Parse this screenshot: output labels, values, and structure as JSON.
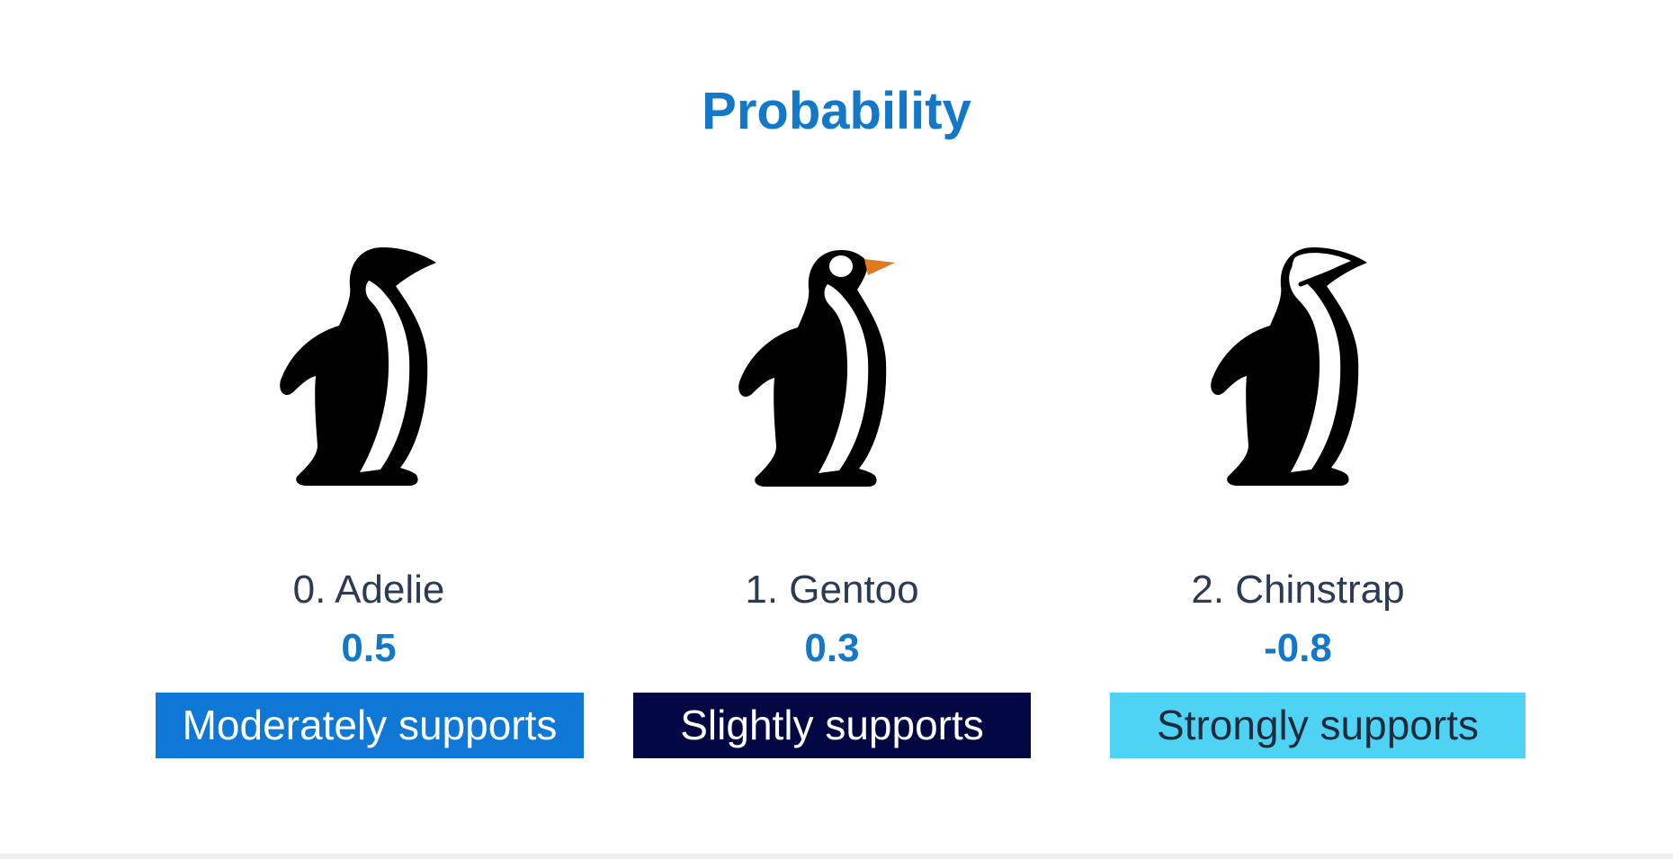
{
  "title": "Probability",
  "species": [
    {
      "name": "0. Adelie",
      "score": "0.5",
      "support_label": "Moderately supports",
      "badge_bg": "#0f78d6",
      "badge_fg": "#ffffff",
      "icon": "adelie-penguin-icon"
    },
    {
      "name": "1. Gentoo",
      "score": "0.3",
      "support_label": "Slightly supports",
      "badge_bg": "#030845",
      "badge_fg": "#ffffff",
      "icon": "gentoo-penguin-icon"
    },
    {
      "name": "2. Chinstrap",
      "score": "-0.8",
      "support_label": "Strongly supports",
      "badge_bg": "#4fd3f5",
      "badge_fg": "#1f2a3a",
      "icon": "chinstrap-penguin-icon"
    }
  ],
  "colors": {
    "title": "#1478c8",
    "name_text": "#2b3a55",
    "score_text": "#1478c8",
    "gentoo_beak": "#e07a1e"
  }
}
